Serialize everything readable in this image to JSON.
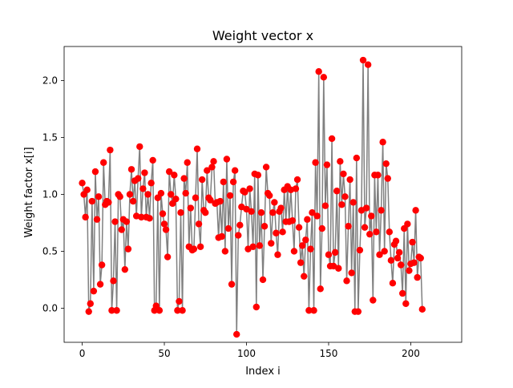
{
  "chart_data": {
    "type": "line",
    "title": "Weight vector x",
    "xlabel": "Index i",
    "ylabel": "Weight factor x[i]",
    "xlim": [
      -11,
      231
    ],
    "ylim": [
      -0.3,
      2.3
    ],
    "xticks": [
      0,
      50,
      100,
      150,
      200
    ],
    "yticks": [
      0.0,
      0.5,
      1.0,
      1.5,
      2.0
    ],
    "ytick_labels": [
      "0.0",
      "0.5",
      "1.0",
      "1.5",
      "2.0"
    ],
    "grid": false,
    "line_color": "#808080",
    "marker_color": "#ff0000",
    "x_start": 0,
    "values": [
      1.1,
      1.0,
      0.8,
      1.04,
      -0.03,
      0.04,
      0.94,
      0.15,
      1.2,
      0.78,
      0.98,
      0.21,
      0.38,
      1.28,
      0.91,
      0.94,
      0.93,
      1.39,
      -0.02,
      0.24,
      0.76,
      -0.02,
      1.0,
      0.98,
      0.69,
      0.78,
      0.34,
      0.76,
      0.52,
      1.0,
      1.22,
      0.94,
      1.12,
      0.81,
      1.14,
      1.42,
      0.8,
      1.05,
      1.19,
      0.8,
      1.0,
      0.79,
      1.1,
      1.3,
      -0.02,
      0.02,
      0.97,
      -0.02,
      1.01,
      0.83,
      0.74,
      0.69,
      0.45,
      1.2,
      1.0,
      0.92,
      1.17,
      0.96,
      -0.02,
      0.06,
      0.84,
      -0.02,
      1.14,
      1.01,
      1.28,
      0.54,
      0.88,
      0.51,
      0.52,
      0.97,
      1.4,
      0.74,
      0.54,
      1.13,
      0.86,
      0.84,
      1.21,
      0.97,
      0.95,
      1.24,
      1.29,
      0.92,
      0.93,
      0.62,
      0.94,
      0.63,
      1.11,
      0.5,
      1.31,
      0.7,
      0.99,
      0.21,
      1.11,
      1.21,
      -0.23,
      0.64,
      0.73,
      0.89,
      1.03,
      1.02,
      0.87,
      0.52,
      1.05,
      0.85,
      0.54,
      1.18,
      0.01,
      1.17,
      0.55,
      0.84,
      0.25,
      0.72,
      1.24,
      1.01,
      0.99,
      0.57,
      0.84,
      0.93,
      0.66,
      0.47,
      0.85,
      0.88,
      0.67,
      1.04,
      0.76,
      1.07,
      0.76,
      1.04,
      0.77,
      0.5,
      1.05,
      1.13,
      0.71,
      0.4,
      0.55,
      0.28,
      0.6,
      0.78,
      -0.02,
      0.52,
      0.84,
      -0.02,
      1.28,
      0.81,
      2.08,
      0.17,
      0.7,
      2.03,
      0.9,
      1.26,
      0.47,
      0.37,
      1.49,
      0.37,
      0.49,
      1.03,
      0.35,
      1.29,
      0.91,
      1.18,
      0.98,
      0.24,
      0.72,
      1.13,
      0.31,
      0.93,
      -0.03,
      1.32,
      -0.03,
      0.51,
      0.86,
      2.18,
      0.71,
      0.88,
      2.14,
      0.65,
      0.81,
      0.07,
      1.17,
      0.67,
      1.17,
      0.47,
      0.86,
      1.46,
      0.5,
      1.27,
      1.14,
      0.67,
      0.42,
      0.22,
      0.56,
      0.59,
      0.44,
      0.49,
      0.38,
      0.13,
      0.7,
      0.04,
      0.74,
      0.33,
      0.39,
      0.58,
      0.4,
      0.86,
      0.27,
      0.45,
      0.44,
      -0.01
    ]
  }
}
